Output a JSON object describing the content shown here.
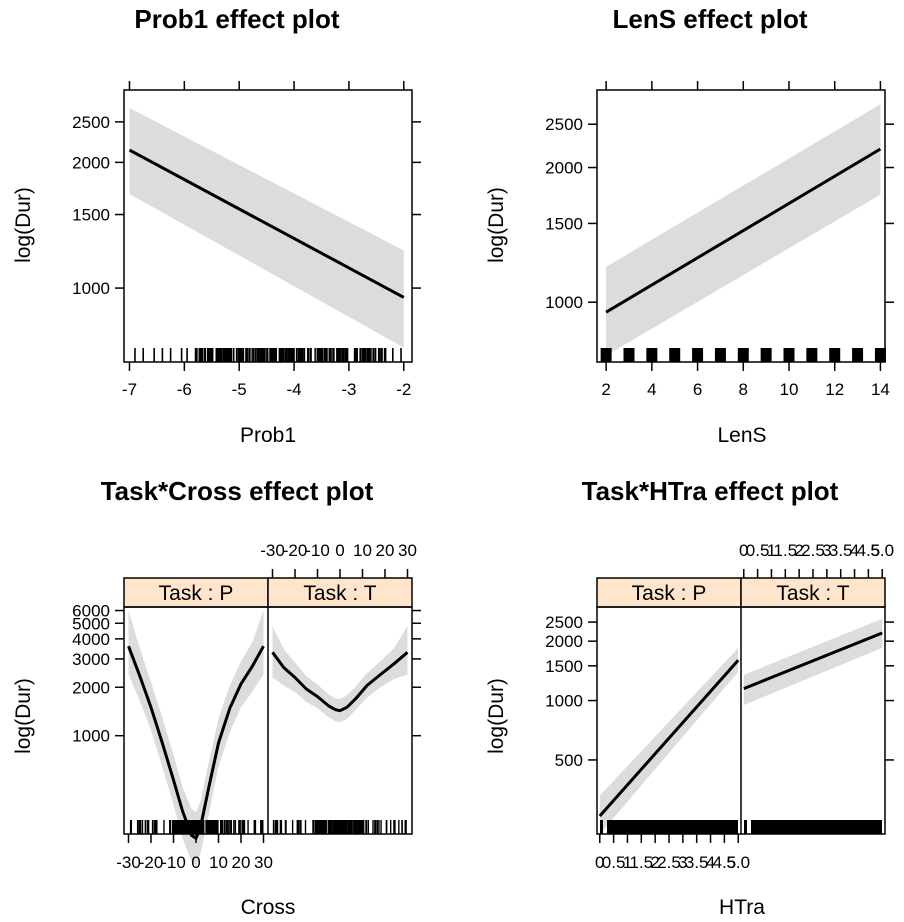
{
  "chart_data": [
    {
      "type": "line",
      "title": "Prob1 effect plot",
      "xlabel": "Prob1",
      "ylabel": "log(Dur)",
      "xlim": [
        -7.1,
        -1.85
      ],
      "ylim": [
        6.5,
        8.0
      ],
      "ylog": true,
      "xticks": [
        -7,
        -6,
        -5,
        -4,
        -3,
        -2
      ],
      "yticks": [
        1000,
        1500,
        2000,
        2500
      ],
      "x": [
        -7,
        -2
      ],
      "fit": [
        2140,
        950
      ],
      "lower": [
        1680,
        720
      ],
      "upper": [
        2700,
        1230
      ],
      "rug": "dense"
    },
    {
      "type": "line",
      "title": "LenS effect plot",
      "xlabel": "LenS",
      "ylabel": "log(Dur)",
      "xlim": [
        1.6,
        14.2
      ],
      "ylim": [
        6.6,
        8.0
      ],
      "ylog": true,
      "xticks": [
        2,
        4,
        6,
        8,
        10,
        12,
        14
      ],
      "yticks": [
        1000,
        1500,
        2000,
        2500
      ],
      "x": [
        2,
        14
      ],
      "fit": [
        950,
        2200
      ],
      "lower": [
        760,
        1740
      ],
      "upper": [
        1200,
        2770
      ],
      "rug": "integers"
    },
    {
      "type": "line",
      "title": "Task*Cross effect plot",
      "xlabel": "Cross",
      "ylabel": "log(Dur)",
      "ylog": true,
      "xlim": [
        -32,
        32
      ],
      "ylim": [
        5.5,
        8.75
      ],
      "yticks": [
        1000,
        2000,
        3000,
        4000,
        5000,
        6000
      ],
      "xticks": [
        -30,
        -20,
        -10,
        0,
        10,
        20,
        30
      ],
      "xtick_labels": [
        "-30",
        "-20",
        "-10",
        "0",
        "10",
        "20",
        "30"
      ],
      "panels": [
        {
          "strip": "Task : P",
          "x": [
            -30,
            -25,
            -20,
            -15,
            -10,
            -6,
            -2,
            0,
            2,
            6,
            10,
            15,
            20,
            25,
            30
          ],
          "fit": [
            3600,
            2350,
            1500,
            900,
            530,
            340,
            240,
            230,
            270,
            500,
            900,
            1480,
            2100,
            2700,
            3600
          ],
          "lower": [
            2400,
            1650,
            1080,
            640,
            370,
            230,
            165,
            155,
            185,
            340,
            640,
            1050,
            1500,
            1880,
            2400
          ],
          "upper": [
            6000,
            3500,
            2150,
            1300,
            760,
            480,
            350,
            335,
            390,
            720,
            1270,
            2050,
            2900,
            3800,
            6000
          ]
        },
        {
          "strip": "Task : T",
          "x": [
            -30,
            -25,
            -20,
            -15,
            -10,
            -5,
            -2,
            0,
            3,
            7,
            12,
            18,
            24,
            30
          ],
          "fit": [
            3300,
            2650,
            2300,
            1950,
            1750,
            1530,
            1450,
            1430,
            1500,
            1700,
            2050,
            2400,
            2800,
            3300
          ],
          "lower": [
            2300,
            2050,
            1870,
            1620,
            1480,
            1300,
            1230,
            1210,
            1270,
            1450,
            1720,
            2000,
            2250,
            2400
          ],
          "upper": [
            4800,
            3450,
            2850,
            2350,
            2080,
            1800,
            1710,
            1690,
            1780,
            2020,
            2450,
            2900,
            3500,
            4800
          ]
        }
      ]
    },
    {
      "type": "line",
      "title": "Task*HTra effect plot",
      "xlabel": "HTra",
      "ylabel": "log(Dur)",
      "ylog": true,
      "xlim": [
        -0.1,
        5.1
      ],
      "ylim": [
        5.35,
        8.0
      ],
      "yticks": [
        500,
        1000,
        1500,
        2000,
        2500
      ],
      "xticks": [
        0,
        0.5,
        1,
        1.5,
        2,
        2.5,
        3,
        3.5,
        4,
        4.5,
        5
      ],
      "xtick_labels": [
        "0",
        "0.5",
        "1",
        "1.5",
        "2",
        "2.5",
        "3",
        "3.5",
        "4",
        "4.5",
        "5.0"
      ],
      "panels": [
        {
          "strip": "Task : P",
          "x": [
            0,
            5
          ],
          "fit": [
            260,
            1600
          ],
          "lower": [
            210,
            1400
          ],
          "upper": [
            330,
            1850
          ]
        },
        {
          "strip": "Task : T",
          "x": [
            0,
            5
          ],
          "fit": [
            1150,
            2200
          ],
          "lower": [
            950,
            1850
          ],
          "upper": [
            1350,
            2600
          ]
        }
      ]
    }
  ]
}
